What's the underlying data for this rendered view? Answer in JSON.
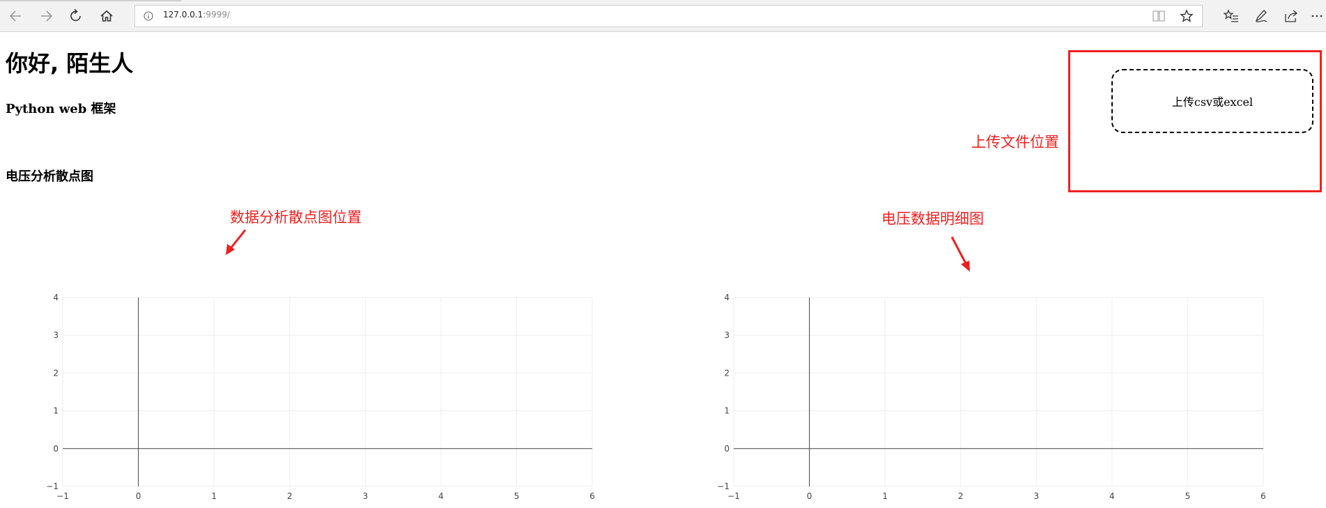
{
  "browser": {
    "url_host": "127.0.0.1",
    "url_port": ":9999/"
  },
  "page": {
    "greeting": "你好, 陌生人",
    "subtitle": "Python web 框架",
    "section_title": "电压分析散点图",
    "upload_label": "上传csv或excel"
  },
  "annotations": {
    "upload_position": "上传文件位置",
    "scatter_position": "数据分析散点图位置",
    "voltage_detail": "电压数据明细图",
    "color": "#ee2020"
  },
  "chart_data": [
    {
      "type": "scatter",
      "series": [],
      "x_ticks": [
        "−1",
        "0",
        "1",
        "2",
        "3",
        "4",
        "5",
        "6"
      ],
      "y_ticks": [
        "−1",
        "0",
        "1",
        "2",
        "3",
        "4"
      ],
      "xlim": [
        -1,
        6
      ],
      "ylim": [
        -1,
        4
      ],
      "grid": true
    },
    {
      "type": "scatter",
      "series": [],
      "x_ticks": [
        "−1",
        "0",
        "1",
        "2",
        "3",
        "4",
        "5",
        "6"
      ],
      "y_ticks": [
        "−1",
        "0",
        "1",
        "2",
        "3",
        "4"
      ],
      "xlim": [
        -1,
        6
      ],
      "ylim": [
        -1,
        4
      ],
      "grid": true
    }
  ]
}
